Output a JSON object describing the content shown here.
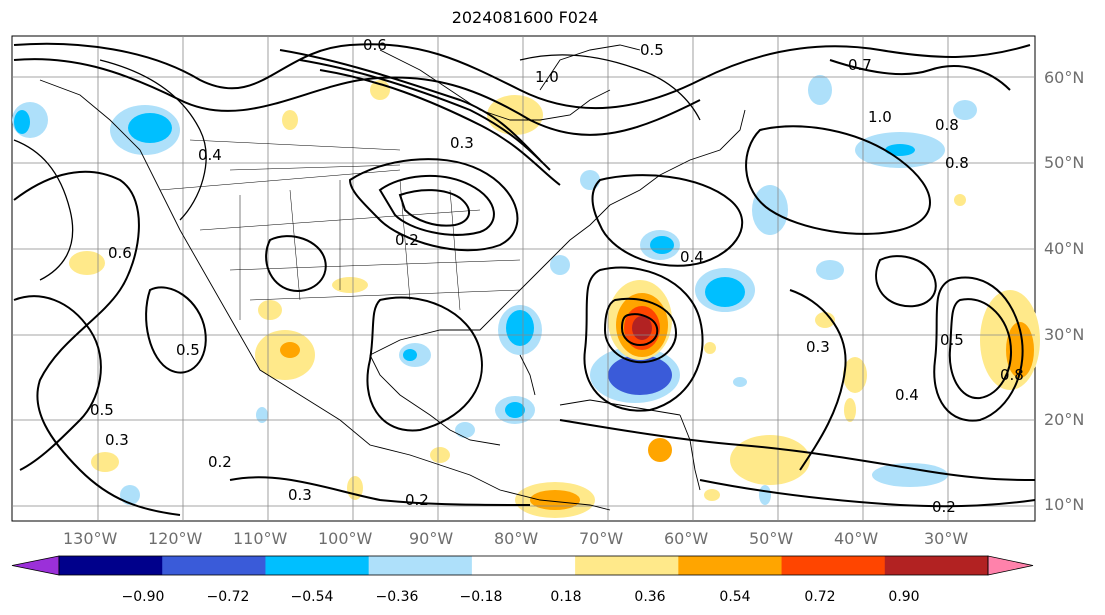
{
  "title": "2024081600 F024",
  "map": {
    "longitude_ticks": [
      "130°W",
      "120°W",
      "110°W",
      "100°W",
      "90°W",
      "80°W",
      "70°W",
      "60°W",
      "50°W",
      "40°W",
      "30°W"
    ],
    "latitude_ticks": [
      "60°N",
      "50°N",
      "40°N",
      "30°N",
      "20°N",
      "10°N"
    ],
    "contour_labels": [
      "0.6",
      "0.5",
      "1.0",
      "0.4",
      "0.3",
      "0.2",
      "0.8",
      "0.7",
      "1.0",
      "0.4",
      "0.3",
      "0.2",
      "0.5",
      "0.6",
      "0.8",
      "0.3",
      "0.2",
      "0.3",
      "0.5",
      "0.2",
      "0.4",
      "0.8",
      "0.5"
    ]
  },
  "colorbar": {
    "ticks": [
      "−0.90",
      "−0.72",
      "−0.54",
      "−0.36",
      "−0.18",
      "0.18",
      "0.36",
      "0.54",
      "0.72",
      "0.90"
    ],
    "colors": [
      "#9b30d9",
      "#00008b",
      "#3a5bd9",
      "#00bfff",
      "#aee0fa",
      "#ffffff",
      "#ffe98a",
      "#ffa500",
      "#ff4500",
      "#b22222",
      "#ff82ab"
    ]
  }
}
